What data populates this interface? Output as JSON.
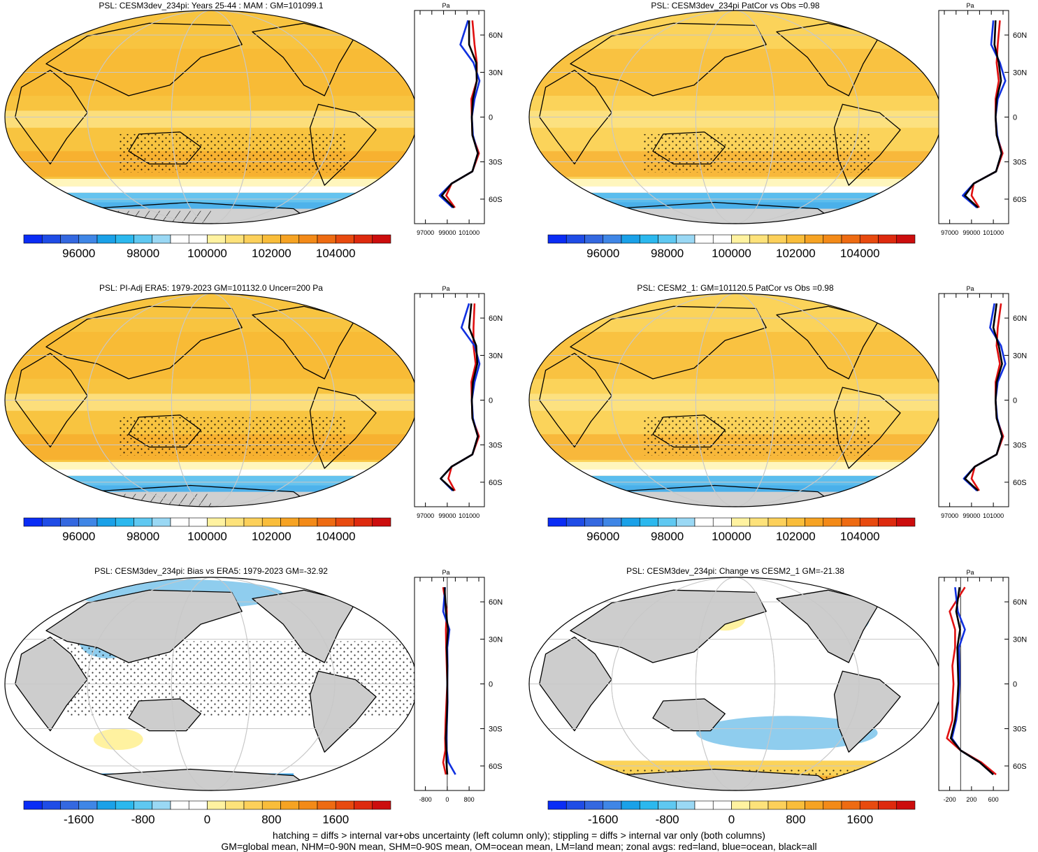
{
  "panels": [
    {
      "id": "p1",
      "title": "PSL: CESM3dev_234pi: Years 25-44 : MAM : GM=101099.1",
      "kind": "abs",
      "mapfill": "#f8c440",
      "sea_ice": "#65c3ef"
    },
    {
      "id": "p2",
      "title": "PSL: CESM3dev_234pi PatCor vs Obs =0.98",
      "kind": "abs",
      "mapfill": "#fbd35a",
      "sea_ice": "#5bbdee"
    },
    {
      "id": "p3",
      "title": "PSL: PI-Adj ERA5: 1979-2023 GM=101132.0 Uncer=200 Pa",
      "kind": "abs",
      "mapfill": "#f8c440",
      "sea_ice": "#65c3ef"
    },
    {
      "id": "p4",
      "title": "PSL: CESM2_1: GM=101120.5 PatCor vs Obs =0.98",
      "kind": "abs",
      "mapfill": "#fbd35a",
      "sea_ice": "#5bbdee"
    },
    {
      "id": "p5",
      "title": "PSL: CESM3dev_234pi: Bias vs ERA5: 1979-2023 GM=-32.92",
      "kind": "diff",
      "mapfill": "#ffffff",
      "land": "#cdcdcd"
    },
    {
      "id": "p6",
      "title": "PSL: CESM3dev_234pi: Change vs CESM2_1 GM=-21.38",
      "kind": "diff",
      "mapfill": "#ffffff",
      "land": "#cdcdcd"
    }
  ],
  "zonal_axis": {
    "unit_label": "Pa",
    "lat_labels": [
      "60N",
      "30N",
      "0",
      "30S",
      "60S"
    ],
    "abs_ticks": [
      "97000",
      "99000",
      "101000"
    ],
    "diff_left_ticks": [
      "-800",
      "0",
      "800"
    ],
    "diff_right_ticks": [
      "-200",
      "200",
      "600"
    ]
  },
  "colorbars": {
    "abs_labels": [
      "96000",
      "98000",
      "100000",
      "102000",
      "104000"
    ],
    "diff_labels": [
      "-1600",
      "-800",
      "0",
      "800",
      "1600"
    ],
    "colors": [
      "#0a2cf5",
      "#1f4ce6",
      "#3468e0",
      "#3f86e6",
      "#1aa1e8",
      "#2bb8ee",
      "#5fc8f1",
      "#9ad8f4",
      "#ffffff",
      "#ffffff",
      "#fff2a0",
      "#fde27a",
      "#fcd05a",
      "#f9bd3a",
      "#f6a323",
      "#f38a18",
      "#ee6b12",
      "#e84a0f",
      "#de2a0e",
      "#cc0d0d"
    ]
  },
  "chart_data": [
    {
      "type": "heatmap",
      "title": "PSL: CESM3dev_234pi: Years 25-44 : MAM : GM=101099.1",
      "colorbar_range": [
        95000,
        105500
      ],
      "colorbar_ticks": [
        96000,
        98000,
        100000,
        102000,
        104000
      ],
      "global_mean": 101099.1,
      "zonal_avg": {
        "x_ticks": [
          97000,
          99000,
          101000
        ],
        "latitudes": [
          80,
          60,
          45,
          30,
          15,
          0,
          -15,
          -30,
          -45,
          -55,
          -65,
          -75
        ],
        "all": [
          101000,
          101000,
          101650,
          101700,
          101350,
          101250,
          101300,
          101800,
          101300,
          99400,
          98500,
          99600
        ],
        "land": [
          101300,
          101500,
          101700,
          101700,
          101200,
          101250,
          101300,
          101900,
          101300,
          99400,
          98900,
          99700
        ],
        "ocean": [
          100900,
          100200,
          101400,
          101950,
          101500,
          101250,
          101350,
          101800,
          101300,
          99400,
          98300,
          99500
        ]
      }
    },
    {
      "type": "heatmap",
      "title": "PSL: CESM3dev_234pi PatCor vs Obs =0.98",
      "colorbar_range": [
        95000,
        105500
      ],
      "colorbar_ticks": [
        96000,
        98000,
        100000,
        102000,
        104000
      ],
      "pattern_correlation": 0.98,
      "zonal_avg": {
        "x_ticks": [
          97000,
          99000,
          101000
        ],
        "latitudes": [
          80,
          60,
          45,
          30,
          15,
          0,
          -15,
          -30,
          -45,
          -55,
          -65,
          -75
        ],
        "all": [
          101200,
          101100,
          101500,
          101700,
          101300,
          101200,
          101300,
          101750,
          101250,
          99200,
          98400,
          99600
        ],
        "land": [
          101600,
          101400,
          101300,
          101500,
          101200,
          101200,
          101300,
          101850,
          101250,
          99200,
          99000,
          99700
        ],
        "ocean": [
          101000,
          100800,
          101600,
          102100,
          101400,
          101200,
          101350,
          101750,
          101250,
          99200,
          98200,
          99500
        ]
      }
    },
    {
      "type": "heatmap",
      "title": "PSL: PI-Adj ERA5: 1979-2023 GM=101132.0 Uncer=200 Pa",
      "colorbar_range": [
        95000,
        105500
      ],
      "colorbar_ticks": [
        96000,
        98000,
        100000,
        102000,
        104000
      ],
      "global_mean": 101132.0,
      "uncertainty": 200,
      "zonal_avg": {
        "x_ticks": [
          97000,
          99000,
          101000
        ],
        "latitudes": [
          80,
          60,
          45,
          30,
          15,
          0,
          -15,
          -30,
          -45,
          -55,
          -65,
          -75
        ],
        "all": [
          101200,
          101000,
          101650,
          101750,
          101350,
          101250,
          101300,
          101800,
          101300,
          99400,
          98400,
          99600
        ],
        "land": [
          101500,
          101400,
          101400,
          101600,
          101200,
          101250,
          101300,
          101900,
          101300,
          99400,
          99100,
          99700
        ],
        "ocean": [
          101000,
          100300,
          101500,
          101950,
          101500,
          101250,
          101350,
          101800,
          101300,
          99400,
          98400,
          99500
        ]
      }
    },
    {
      "type": "heatmap",
      "title": "PSL: CESM2_1: GM=101120.5 PatCor vs Obs =0.98",
      "colorbar_range": [
        95000,
        105500
      ],
      "colorbar_ticks": [
        96000,
        98000,
        100000,
        102000,
        104000
      ],
      "global_mean": 101120.5,
      "pattern_correlation": 0.98,
      "zonal_avg": {
        "x_ticks": [
          97000,
          99000,
          101000
        ],
        "latitudes": [
          80,
          60,
          45,
          30,
          15,
          0,
          -15,
          -30,
          -45,
          -55,
          -65,
          -75
        ],
        "all": [
          101300,
          101000,
          101500,
          101800,
          101300,
          101200,
          101300,
          101800,
          101300,
          99300,
          98400,
          99600
        ],
        "land": [
          101700,
          101400,
          101300,
          101600,
          101200,
          101200,
          101300,
          101900,
          101300,
          99300,
          99000,
          99700
        ],
        "ocean": [
          101100,
          100700,
          101700,
          102100,
          101400,
          101200,
          101350,
          101800,
          101300,
          99300,
          98300,
          99500
        ]
      }
    },
    {
      "type": "heatmap",
      "title": "PSL: CESM3dev_234pi: Bias vs ERA5: 1979-2023 GM=-32.92",
      "colorbar_range": [
        -2100,
        2100
      ],
      "colorbar_ticks": [
        -1600,
        -800,
        0,
        800,
        1600
      ],
      "global_mean": -32.92,
      "zonal_avg": {
        "x_ticks": [
          -800,
          0,
          800
        ],
        "latitudes": [
          80,
          60,
          45,
          30,
          15,
          0,
          -15,
          -30,
          -45,
          -55,
          -65,
          -75
        ],
        "all": [
          -100,
          -50,
          30,
          -20,
          0,
          0,
          0,
          -20,
          -50,
          -30,
          -30,
          0
        ],
        "land": [
          -150,
          -20,
          -50,
          -40,
          -20,
          0,
          -30,
          -60,
          -80,
          -70,
          -150,
          -50
        ],
        "ocean": [
          -80,
          -150,
          80,
          0,
          10,
          0,
          10,
          -10,
          -30,
          -20,
          50,
          300
        ]
      }
    },
    {
      "type": "heatmap",
      "title": "PSL: CESM3dev_234pi: Change vs CESM2_1 GM=-21.38",
      "colorbar_range": [
        -2100,
        2100
      ],
      "colorbar_ticks": [
        -1600,
        -800,
        0,
        800,
        1600
      ],
      "global_mean": -21.38,
      "zonal_avg": {
        "x_ticks": [
          -200,
          200,
          600
        ],
        "latitudes": [
          80,
          60,
          45,
          30,
          15,
          0,
          -15,
          -30,
          -45,
          -55,
          -65,
          -75
        ],
        "all": [
          -20,
          -80,
          -10,
          -60,
          -50,
          -40,
          -60,
          -100,
          -180,
          0,
          350,
          600
        ],
        "land": [
          80,
          -200,
          -100,
          -100,
          -150,
          -130,
          -150,
          -150,
          -250,
          0,
          380,
          650
        ],
        "ocean": [
          -100,
          -50,
          80,
          -30,
          -20,
          -20,
          -40,
          -80,
          -160,
          0,
          350,
          600
        ]
      }
    }
  ],
  "footer": {
    "line1": "hatching = diffs > internal var+obs uncertainty (left column only); stippling = diffs > internal var only (both columns)",
    "line2": "GM=global mean, NHM=0-90N mean, SHM=0-90S mean, OM=ocean mean, LM=land mean; zonal avgs: red=land, blue=ocean, black=all"
  }
}
